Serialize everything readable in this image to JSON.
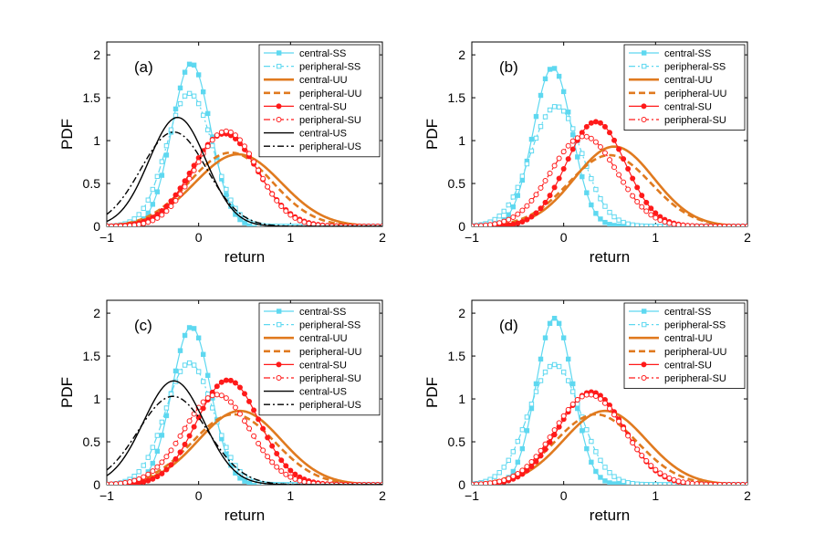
{
  "figure": {
    "xlabel": "return",
    "ylabel": "PDF",
    "xticks": [
      "-1",
      "0",
      "1",
      "2"
    ],
    "yticks": [
      "0",
      "0.5",
      "1",
      "1.5",
      "2"
    ]
  },
  "styles": {
    "central-SS": {
      "color": "#5ED8F0",
      "dash": "solid",
      "marker": "filled-square",
      "width": 1.2
    },
    "peripheral-SS": {
      "color": "#5ED8F0",
      "dash": "dashdot",
      "marker": "open-square",
      "width": 1.2
    },
    "central-UU": {
      "color": "#E07A1F",
      "dash": "solid",
      "marker": "none",
      "width": 2.6
    },
    "peripheral-UU": {
      "color": "#E07A1F",
      "dash": "dashed",
      "marker": "none",
      "width": 2.6
    },
    "central-SU": {
      "color": "#FF1A1A",
      "dash": "solid",
      "marker": "filled-circle",
      "width": 1.2
    },
    "peripheral-SU": {
      "color": "#FF1A1A",
      "dash": "dashdot",
      "marker": "open-circle",
      "width": 1.2
    },
    "central-US": {
      "color": "#000000",
      "dash": "solid",
      "marker": "none",
      "width": 1.4
    },
    "peripheral-US": {
      "color": "#000000",
      "dash": "dashdot",
      "marker": "none",
      "width": 1.4
    }
  },
  "chart_data": [
    {
      "type": "line",
      "panel": "(a)",
      "xlabel": "return",
      "ylabel": "PDF",
      "xlim": [
        -1,
        2
      ],
      "ylim": [
        0,
        2.15
      ],
      "series": [
        {
          "name": "central-SS",
          "mu": -0.08,
          "sigma": 0.21,
          "peak": 1.9
        },
        {
          "name": "peripheral-SS",
          "mu": -0.1,
          "sigma": 0.25,
          "peak": 1.55
        },
        {
          "name": "central-UU",
          "mu": 0.43,
          "sigma": 0.47,
          "peak": 0.84
        },
        {
          "name": "peripheral-UU",
          "mu": 0.35,
          "sigma": 0.45,
          "peak": 0.86
        },
        {
          "name": "central-SU",
          "mu": 0.28,
          "sigma": 0.36,
          "peak": 1.08
        },
        {
          "name": "peripheral-SU",
          "mu": 0.3,
          "sigma": 0.34,
          "peak": 1.11
        },
        {
          "name": "central-US",
          "mu": -0.23,
          "sigma": 0.31,
          "peak": 1.27
        },
        {
          "name": "peripheral-US",
          "mu": -0.27,
          "sigma": 0.36,
          "peak": 1.1
        }
      ]
    },
    {
      "type": "line",
      "panel": "(b)",
      "xlabel": "return",
      "ylabel": "PDF",
      "xlim": [
        -1,
        2
      ],
      "ylim": [
        0,
        2.15
      ],
      "series": [
        {
          "name": "central-SS",
          "mu": -0.12,
          "sigma": 0.21,
          "peak": 1.85
        },
        {
          "name": "peripheral-SS",
          "mu": -0.08,
          "sigma": 0.28,
          "peak": 1.4
        },
        {
          "name": "central-UU",
          "mu": 0.55,
          "sigma": 0.43,
          "peak": 0.93
        },
        {
          "name": "peripheral-UU",
          "mu": 0.5,
          "sigma": 0.45,
          "peak": 0.83
        },
        {
          "name": "central-SU",
          "mu": 0.35,
          "sigma": 0.32,
          "peak": 1.22
        },
        {
          "name": "peripheral-SU",
          "mu": 0.22,
          "sigma": 0.36,
          "peak": 1.05
        }
      ]
    },
    {
      "type": "line",
      "panel": "(c)",
      "xlabel": "return",
      "ylabel": "PDF",
      "xlim": [
        -1,
        2
      ],
      "ylim": [
        0,
        2.15
      ],
      "series": [
        {
          "name": "central-SS",
          "mu": -0.08,
          "sigma": 0.21,
          "peak": 1.84
        },
        {
          "name": "peripheral-SS",
          "mu": -0.1,
          "sigma": 0.26,
          "peak": 1.42
        },
        {
          "name": "central-UU",
          "mu": 0.45,
          "sigma": 0.45,
          "peak": 0.86
        },
        {
          "name": "peripheral-UU",
          "mu": 0.38,
          "sigma": 0.45,
          "peak": 0.82
        },
        {
          "name": "central-SU",
          "mu": 0.32,
          "sigma": 0.34,
          "peak": 1.22
        },
        {
          "name": "peripheral-SU",
          "mu": 0.2,
          "sigma": 0.36,
          "peak": 1.05
        },
        {
          "name": "central-US",
          "mu": -0.27,
          "sigma": 0.33,
          "peak": 1.21
        },
        {
          "name": "peripheral-US",
          "mu": -0.28,
          "sigma": 0.38,
          "peak": 1.03
        }
      ]
    },
    {
      "type": "line",
      "panel": "(d)",
      "xlabel": "return",
      "ylabel": "PDF",
      "xlim": [
        -1,
        2
      ],
      "ylim": [
        0,
        2.15
      ],
      "series": [
        {
          "name": "central-SS",
          "mu": -0.1,
          "sigma": 0.2,
          "peak": 1.94
        },
        {
          "name": "peripheral-SS",
          "mu": -0.1,
          "sigma": 0.28,
          "peak": 1.4
        },
        {
          "name": "central-UU",
          "mu": 0.45,
          "sigma": 0.45,
          "peak": 0.86
        },
        {
          "name": "peripheral-UU",
          "mu": 0.35,
          "sigma": 0.45,
          "peak": 0.82
        },
        {
          "name": "central-SU",
          "mu": 0.3,
          "sigma": 0.36,
          "peak": 1.08
        },
        {
          "name": "peripheral-SU",
          "mu": 0.28,
          "sigma": 0.38,
          "peak": 1.05
        }
      ]
    }
  ]
}
